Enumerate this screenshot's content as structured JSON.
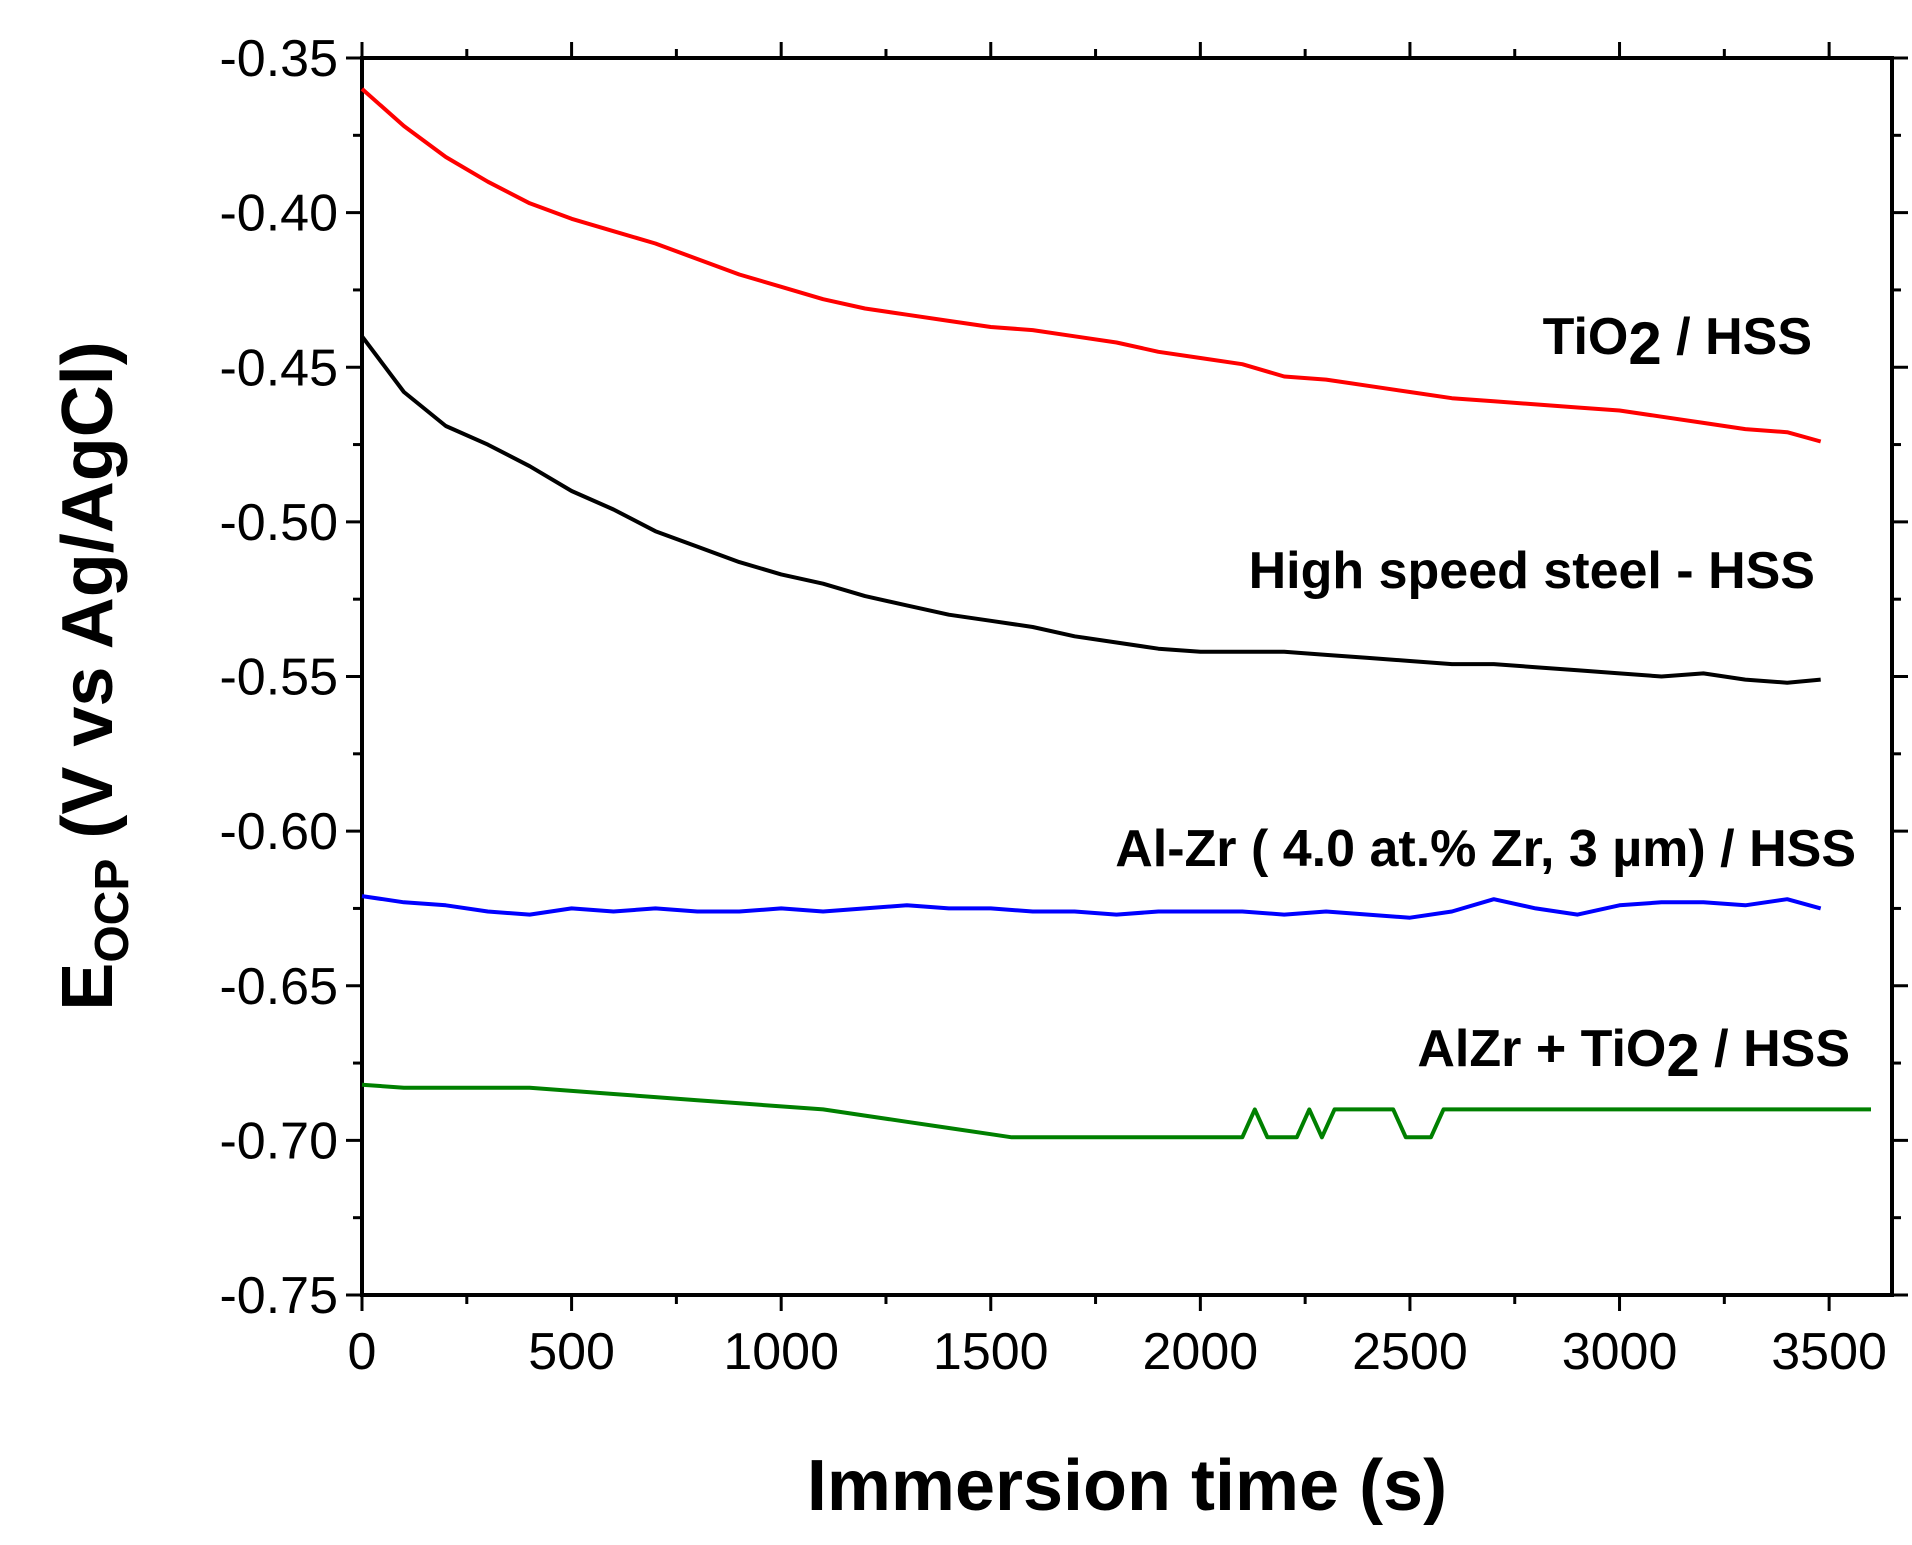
{
  "chart_data": {
    "type": "line",
    "title": "",
    "xlabel": "Immersion time (s)",
    "ylabel": {
      "main": "E",
      "sub": "OCP",
      "rest": " (V vs Ag/AgCl)"
    },
    "xlim": [
      0,
      3650
    ],
    "ylim": [
      -0.75,
      -0.35
    ],
    "xticks": [
      0,
      500,
      1000,
      1500,
      2000,
      2500,
      3000,
      3500
    ],
    "xtick_labels": [
      "0",
      "500",
      "1000",
      "1500",
      "2000",
      "2500",
      "3000",
      "3500"
    ],
    "yticks": [
      -0.35,
      -0.4,
      -0.45,
      -0.5,
      -0.55,
      -0.6,
      -0.65,
      -0.7,
      -0.75
    ],
    "ytick_labels": [
      "-0.35",
      "-0.40",
      "-0.45",
      "-0.50",
      "-0.55",
      "-0.60",
      "-0.65",
      "-0.70",
      "-0.75"
    ],
    "x_minor_step": 250,
    "y_minor_step": 0.025,
    "grid": false,
    "series": [
      {
        "name": "TiO2 / HSS",
        "label_main": "TiO",
        "label_sub": "2",
        "label_rest": " / HSS",
        "color": "#ff0000",
        "x": [
          0,
          100,
          200,
          300,
          400,
          500,
          600,
          700,
          800,
          900,
          1000,
          1100,
          1200,
          1300,
          1400,
          1500,
          1600,
          1700,
          1800,
          1900,
          2000,
          2100,
          2200,
          2300,
          2400,
          2500,
          2600,
          2700,
          2800,
          2900,
          3000,
          3100,
          3200,
          3300,
          3400,
          3480
        ],
        "y": [
          -0.36,
          -0.372,
          -0.382,
          -0.39,
          -0.397,
          -0.402,
          -0.406,
          -0.41,
          -0.415,
          -0.42,
          -0.424,
          -0.428,
          -0.431,
          -0.433,
          -0.435,
          -0.437,
          -0.438,
          -0.44,
          -0.442,
          -0.445,
          -0.447,
          -0.449,
          -0.453,
          -0.454,
          -0.456,
          -0.458,
          -0.46,
          -0.461,
          -0.462,
          -0.463,
          -0.464,
          -0.466,
          -0.468,
          -0.47,
          -0.471,
          -0.474
        ]
      },
      {
        "name": "High speed steel - HSS",
        "label_main": "High speed steel - HSS",
        "label_sub": "",
        "label_rest": "",
        "color": "#000000",
        "x": [
          0,
          100,
          200,
          300,
          400,
          500,
          600,
          700,
          800,
          900,
          1000,
          1100,
          1200,
          1300,
          1400,
          1500,
          1600,
          1700,
          1800,
          1900,
          2000,
          2100,
          2200,
          2300,
          2400,
          2500,
          2600,
          2700,
          2800,
          2900,
          3000,
          3100,
          3200,
          3300,
          3400,
          3480
        ],
        "y": [
          -0.44,
          -0.458,
          -0.469,
          -0.475,
          -0.482,
          -0.49,
          -0.496,
          -0.503,
          -0.508,
          -0.513,
          -0.517,
          -0.52,
          -0.524,
          -0.527,
          -0.53,
          -0.532,
          -0.534,
          -0.537,
          -0.539,
          -0.541,
          -0.542,
          -0.542,
          -0.542,
          -0.543,
          -0.544,
          -0.545,
          -0.546,
          -0.546,
          -0.547,
          -0.548,
          -0.549,
          -0.55,
          -0.549,
          -0.551,
          -0.552,
          -0.551
        ]
      },
      {
        "name": "Al-Zr ( 4.0 at.% Zr, 3 µm) / HSS",
        "label_main": "Al-Zr ( 4.0 at.% Zr, 3 µm) / HSS",
        "label_sub": "",
        "label_rest": "",
        "color": "#0000ff",
        "x": [
          0,
          100,
          200,
          300,
          400,
          500,
          600,
          700,
          800,
          900,
          1000,
          1100,
          1200,
          1300,
          1400,
          1500,
          1600,
          1700,
          1800,
          1900,
          2000,
          2100,
          2200,
          2300,
          2400,
          2500,
          2600,
          2700,
          2800,
          2900,
          3000,
          3100,
          3200,
          3300,
          3400,
          3480
        ],
        "y": [
          -0.621,
          -0.623,
          -0.624,
          -0.626,
          -0.627,
          -0.625,
          -0.626,
          -0.625,
          -0.626,
          -0.626,
          -0.625,
          -0.626,
          -0.625,
          -0.624,
          -0.625,
          -0.625,
          -0.626,
          -0.626,
          -0.627,
          -0.626,
          -0.626,
          -0.626,
          -0.627,
          -0.626,
          -0.627,
          -0.628,
          -0.626,
          -0.622,
          -0.625,
          -0.627,
          -0.624,
          -0.623,
          -0.623,
          -0.624,
          -0.622,
          -0.625
        ]
      },
      {
        "name": "AlZr + TiO2 / HSS",
        "label_main": "AlZr + TiO",
        "label_sub": "2",
        "label_rest": " / HSS",
        "color": "#008000",
        "x": [
          0,
          100,
          200,
          300,
          400,
          500,
          600,
          700,
          800,
          900,
          1000,
          1100,
          1200,
          1300,
          1400,
          1500,
          1550,
          2100,
          2130,
          2160,
          2230,
          2260,
          2290,
          2320,
          2460,
          2490,
          2550,
          2580,
          3600
        ],
        "y": [
          -0.682,
          -0.683,
          -0.683,
          -0.683,
          -0.683,
          -0.684,
          -0.685,
          -0.686,
          -0.687,
          -0.688,
          -0.689,
          -0.69,
          -0.692,
          -0.694,
          -0.696,
          -0.698,
          -0.699,
          -0.699,
          -0.69,
          -0.699,
          -0.699,
          -0.69,
          -0.699,
          -0.69,
          -0.69,
          -0.699,
          -0.699,
          -0.69,
          -0.69
        ]
      }
    ]
  }
}
